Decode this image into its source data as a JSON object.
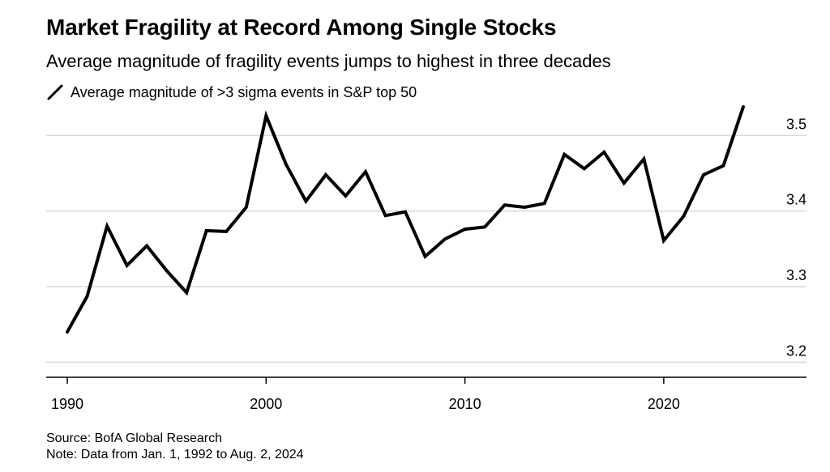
{
  "title": "Market Fragility at Record Among Single Stocks",
  "subtitle": "Average magnitude of fragility events jumps to highest in three decades",
  "footer": {
    "source": "Source: BofA Global Research",
    "note": "Note: Data from Jan. 1, 1992 to Aug. 2, 2024"
  },
  "colors": {
    "line": "#000000",
    "grid": "#d9d9d9",
    "axis": "#000000"
  },
  "chart_data": {
    "type": "line",
    "title": "Market Fragility at Record Among Single Stocks",
    "subtitle": "Average magnitude of fragility events jumps to highest in three decades",
    "xlabel": "",
    "ylabel": "",
    "xlim": [
      1989,
      2026
    ],
    "ylim": [
      3.18,
      3.54
    ],
    "x_ticks": [
      1990,
      2000,
      2010,
      2020
    ],
    "y_ticks": [
      3.2,
      3.3,
      3.4,
      3.5
    ],
    "y_axis_position": "right",
    "grid": "horizontal",
    "legend_position": "top-left",
    "series": [
      {
        "name": "Average magnitude of >3 sigma events in S&P top 50",
        "x": [
          1990,
          1991,
          1992,
          1993,
          1994,
          1995,
          1996,
          1997,
          1998,
          1999,
          2000,
          2001,
          2002,
          2003,
          2004,
          2005,
          2006,
          2007,
          2008,
          2009,
          2010,
          2011,
          2012,
          2013,
          2014,
          2015,
          2016,
          2017,
          2018,
          2019,
          2020,
          2021,
          2022,
          2023,
          2024
        ],
        "values": [
          3.24,
          3.287,
          3.38,
          3.328,
          3.354,
          3.321,
          3.292,
          3.374,
          3.373,
          3.405,
          3.526,
          3.462,
          3.413,
          3.448,
          3.42,
          3.452,
          3.394,
          3.399,
          3.34,
          3.363,
          3.376,
          3.379,
          3.408,
          3.405,
          3.41,
          3.475,
          3.456,
          3.478,
          3.437,
          3.469,
          3.361,
          3.393,
          3.448,
          3.46,
          3.538
        ]
      }
    ]
  }
}
